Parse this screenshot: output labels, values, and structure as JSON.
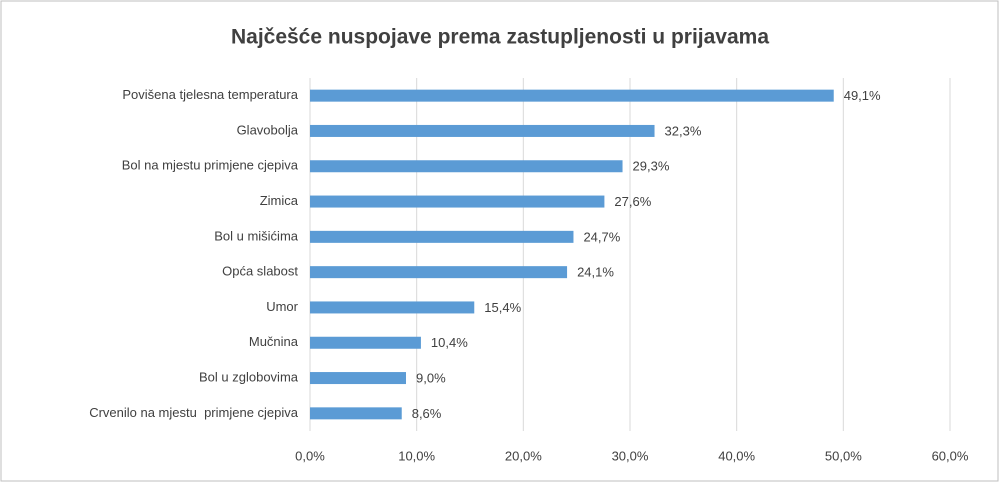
{
  "chart_data": {
    "type": "bar",
    "orientation": "horizontal",
    "title": "Najčešće nuspojave prema zastupljenosti u prijavama",
    "categories": [
      "Povišena tjelesna temperatura",
      "Glavobolja",
      "Bol na mjestu primjene cjepiva",
      "Zimica",
      "Bol u mišićima",
      "Opća slabost",
      "Umor",
      "Mučnina",
      "Bol u zglobovima",
      "Crvenilo na mjestu  primjene cjepiva"
    ],
    "values": [
      49.1,
      32.3,
      29.3,
      27.6,
      24.7,
      24.1,
      15.4,
      10.4,
      9.0,
      8.6
    ],
    "value_labels": [
      "49,1%",
      "32,3%",
      "29,3%",
      "27,6%",
      "24,7%",
      "24,1%",
      "15,4%",
      "10,4%",
      "9,0%",
      "8,6%"
    ],
    "color": "#5b9bd5",
    "xlim": [
      0,
      60
    ],
    "xticks": [
      {
        "value": 0,
        "label": "0,0%"
      },
      {
        "value": 10,
        "label": "10,0%"
      },
      {
        "value": 20,
        "label": "20,0%"
      },
      {
        "value": 30,
        "label": "30,0%"
      },
      {
        "value": 40,
        "label": "40,0%"
      },
      {
        "value": 50,
        "label": "50,0%"
      },
      {
        "value": 60,
        "label": "60,0%"
      }
    ],
    "grid": true
  }
}
